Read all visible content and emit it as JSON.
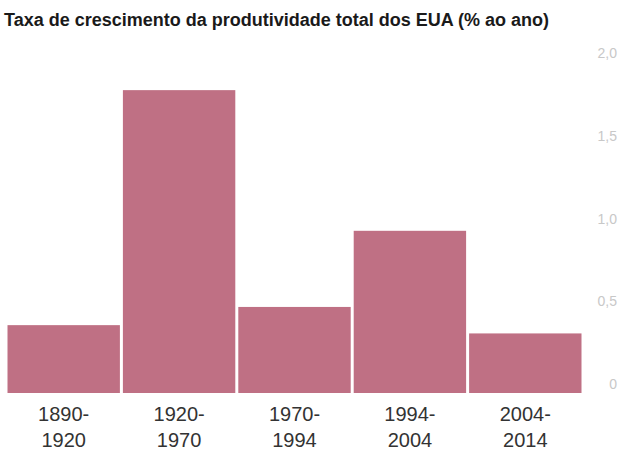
{
  "chart_data": {
    "type": "bar",
    "title": "Taxa de crescimento da produtividade total dos EUA (% ao ano)",
    "categories": [
      "1890-1920",
      "1920-1970",
      "1970-1994",
      "1994-2004",
      "2004-2014"
    ],
    "values": [
      0.41,
      1.83,
      0.52,
      0.98,
      0.36
    ],
    "color": "#bf7084",
    "ylim": [
      0,
      2
    ],
    "yticks": [
      0,
      {
        "value": 0.5,
        "label": "0,5"
      },
      {
        "value": 1,
        "label": "1,0"
      },
      {
        "value": 1.5,
        "label": "1,5"
      },
      {
        "value": 2,
        "label": "2,0"
      }
    ],
    "grid": false
  }
}
